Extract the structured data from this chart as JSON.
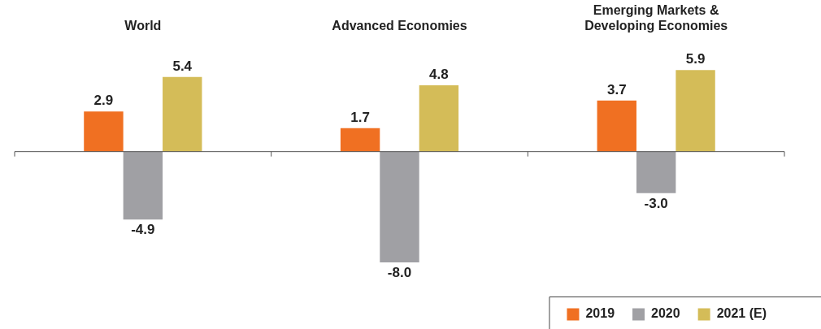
{
  "chart_data": {
    "type": "bar",
    "categories": [
      "World",
      "Advanced Economies",
      "Emerging Markets & Developing Economies"
    ],
    "series": [
      {
        "name": "2019",
        "color": "#f07022",
        "values": [
          2.9,
          1.7,
          3.7
        ],
        "value_labels": [
          "2.9",
          "1.7",
          "3.7"
        ]
      },
      {
        "name": "2020",
        "color": "#a0a0a4",
        "values": [
          -4.9,
          -8,
          -3
        ],
        "value_labels": [
          "-4.9",
          "-8.0",
          "-3.0"
        ]
      },
      {
        "name": "2021 (E)",
        "color": "#d4bc58",
        "values": [
          5.4,
          4.8,
          5.9
        ],
        "value_labels": [
          "5.4",
          "4.8",
          "5.9"
        ]
      }
    ],
    "legend": "bottom right",
    "grid": false
  }
}
